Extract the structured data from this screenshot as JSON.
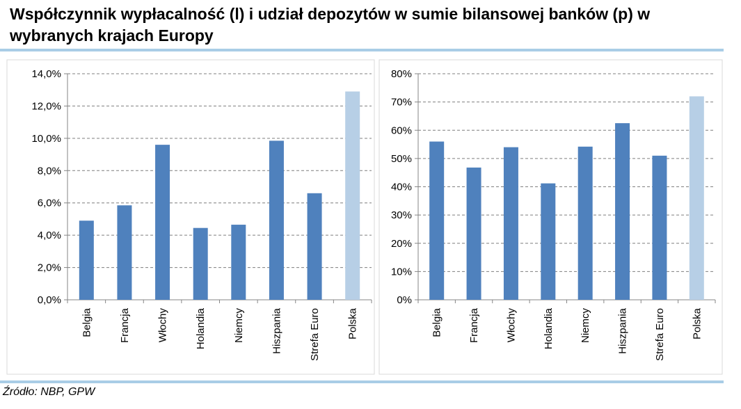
{
  "title": "Współczynnik wypłacalność (l) i udział depozytów w sumie bilansowej banków (p) w wybranych krajach Europy",
  "source": "Źródło: NBP, GPW",
  "colors": {
    "bar": "#4f81bd",
    "highlight_bar": "#b7cfe6",
    "grid": "#7f7f7f",
    "axis": "#868686",
    "title_rule": "#a9cde6"
  },
  "chart_data": [
    {
      "type": "bar",
      "title": "",
      "xlabel": "",
      "ylabel": "",
      "categories": [
        "Belgia",
        "Francja",
        "Włochy",
        "Holandia",
        "Niemcy",
        "Hiszpania",
        "Strefa Euro",
        "Polska"
      ],
      "values": [
        4.9,
        5.85,
        9.6,
        4.45,
        4.65,
        9.85,
        6.6,
        12.9
      ],
      "highlight": "Polska",
      "ylim": [
        0,
        14
      ],
      "ytick_values": [
        0,
        2,
        4,
        6,
        8,
        10,
        12,
        14
      ],
      "ytick_labels": [
        "0,0%",
        "2,0%",
        "4,0%",
        "6,0%",
        "8,0%",
        "10,0%",
        "12,0%",
        "14,0%"
      ],
      "grid": true
    },
    {
      "type": "bar",
      "title": "",
      "xlabel": "",
      "ylabel": "",
      "categories": [
        "Belgia",
        "Francja",
        "Włochy",
        "Holandia",
        "Niemcy",
        "Hiszpania",
        "Strefa Euro",
        "Polska"
      ],
      "values": [
        56,
        46.8,
        54,
        41.2,
        54.2,
        62.5,
        51,
        72
      ],
      "highlight": "Polska",
      "ylim": [
        0,
        80
      ],
      "ytick_values": [
        0,
        10,
        20,
        30,
        40,
        50,
        60,
        70,
        80
      ],
      "ytick_labels": [
        "0%",
        "10%",
        "20%",
        "30%",
        "40%",
        "50%",
        "60%",
        "70%",
        "80%"
      ],
      "grid": true
    }
  ]
}
